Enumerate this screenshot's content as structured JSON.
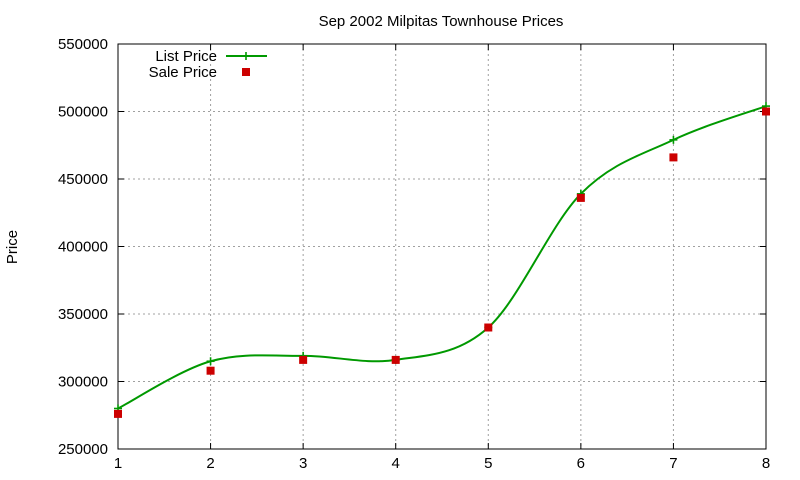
{
  "chart_data": {
    "type": "line",
    "title": "Sep 2002 Milpitas Townhouse Prices",
    "ylabel": "Price",
    "xlabel": "",
    "xlim": [
      1,
      8
    ],
    "ylim": [
      250000,
      550000
    ],
    "xticks": [
      "1",
      "2",
      "3",
      "4",
      "5",
      "6",
      "7",
      "8"
    ],
    "yticks": [
      "250000",
      "300000",
      "350000",
      "400000",
      "450000",
      "500000",
      "550000"
    ],
    "grid": true,
    "legend_position": "top-left",
    "x": [
      1,
      2,
      3,
      4,
      5,
      6,
      7,
      8
    ],
    "series": [
      {
        "name": "List Price",
        "style": "line-plus",
        "color": "#009900",
        "values": [
          280000,
          315000,
          319000,
          316000,
          340000,
          439000,
          479000,
          504000
        ]
      },
      {
        "name": "Sale Price",
        "style": "square",
        "color": "#cc0000",
        "values": [
          276000,
          308000,
          316000,
          316000,
          340000,
          436000,
          466000,
          500000
        ]
      }
    ]
  }
}
